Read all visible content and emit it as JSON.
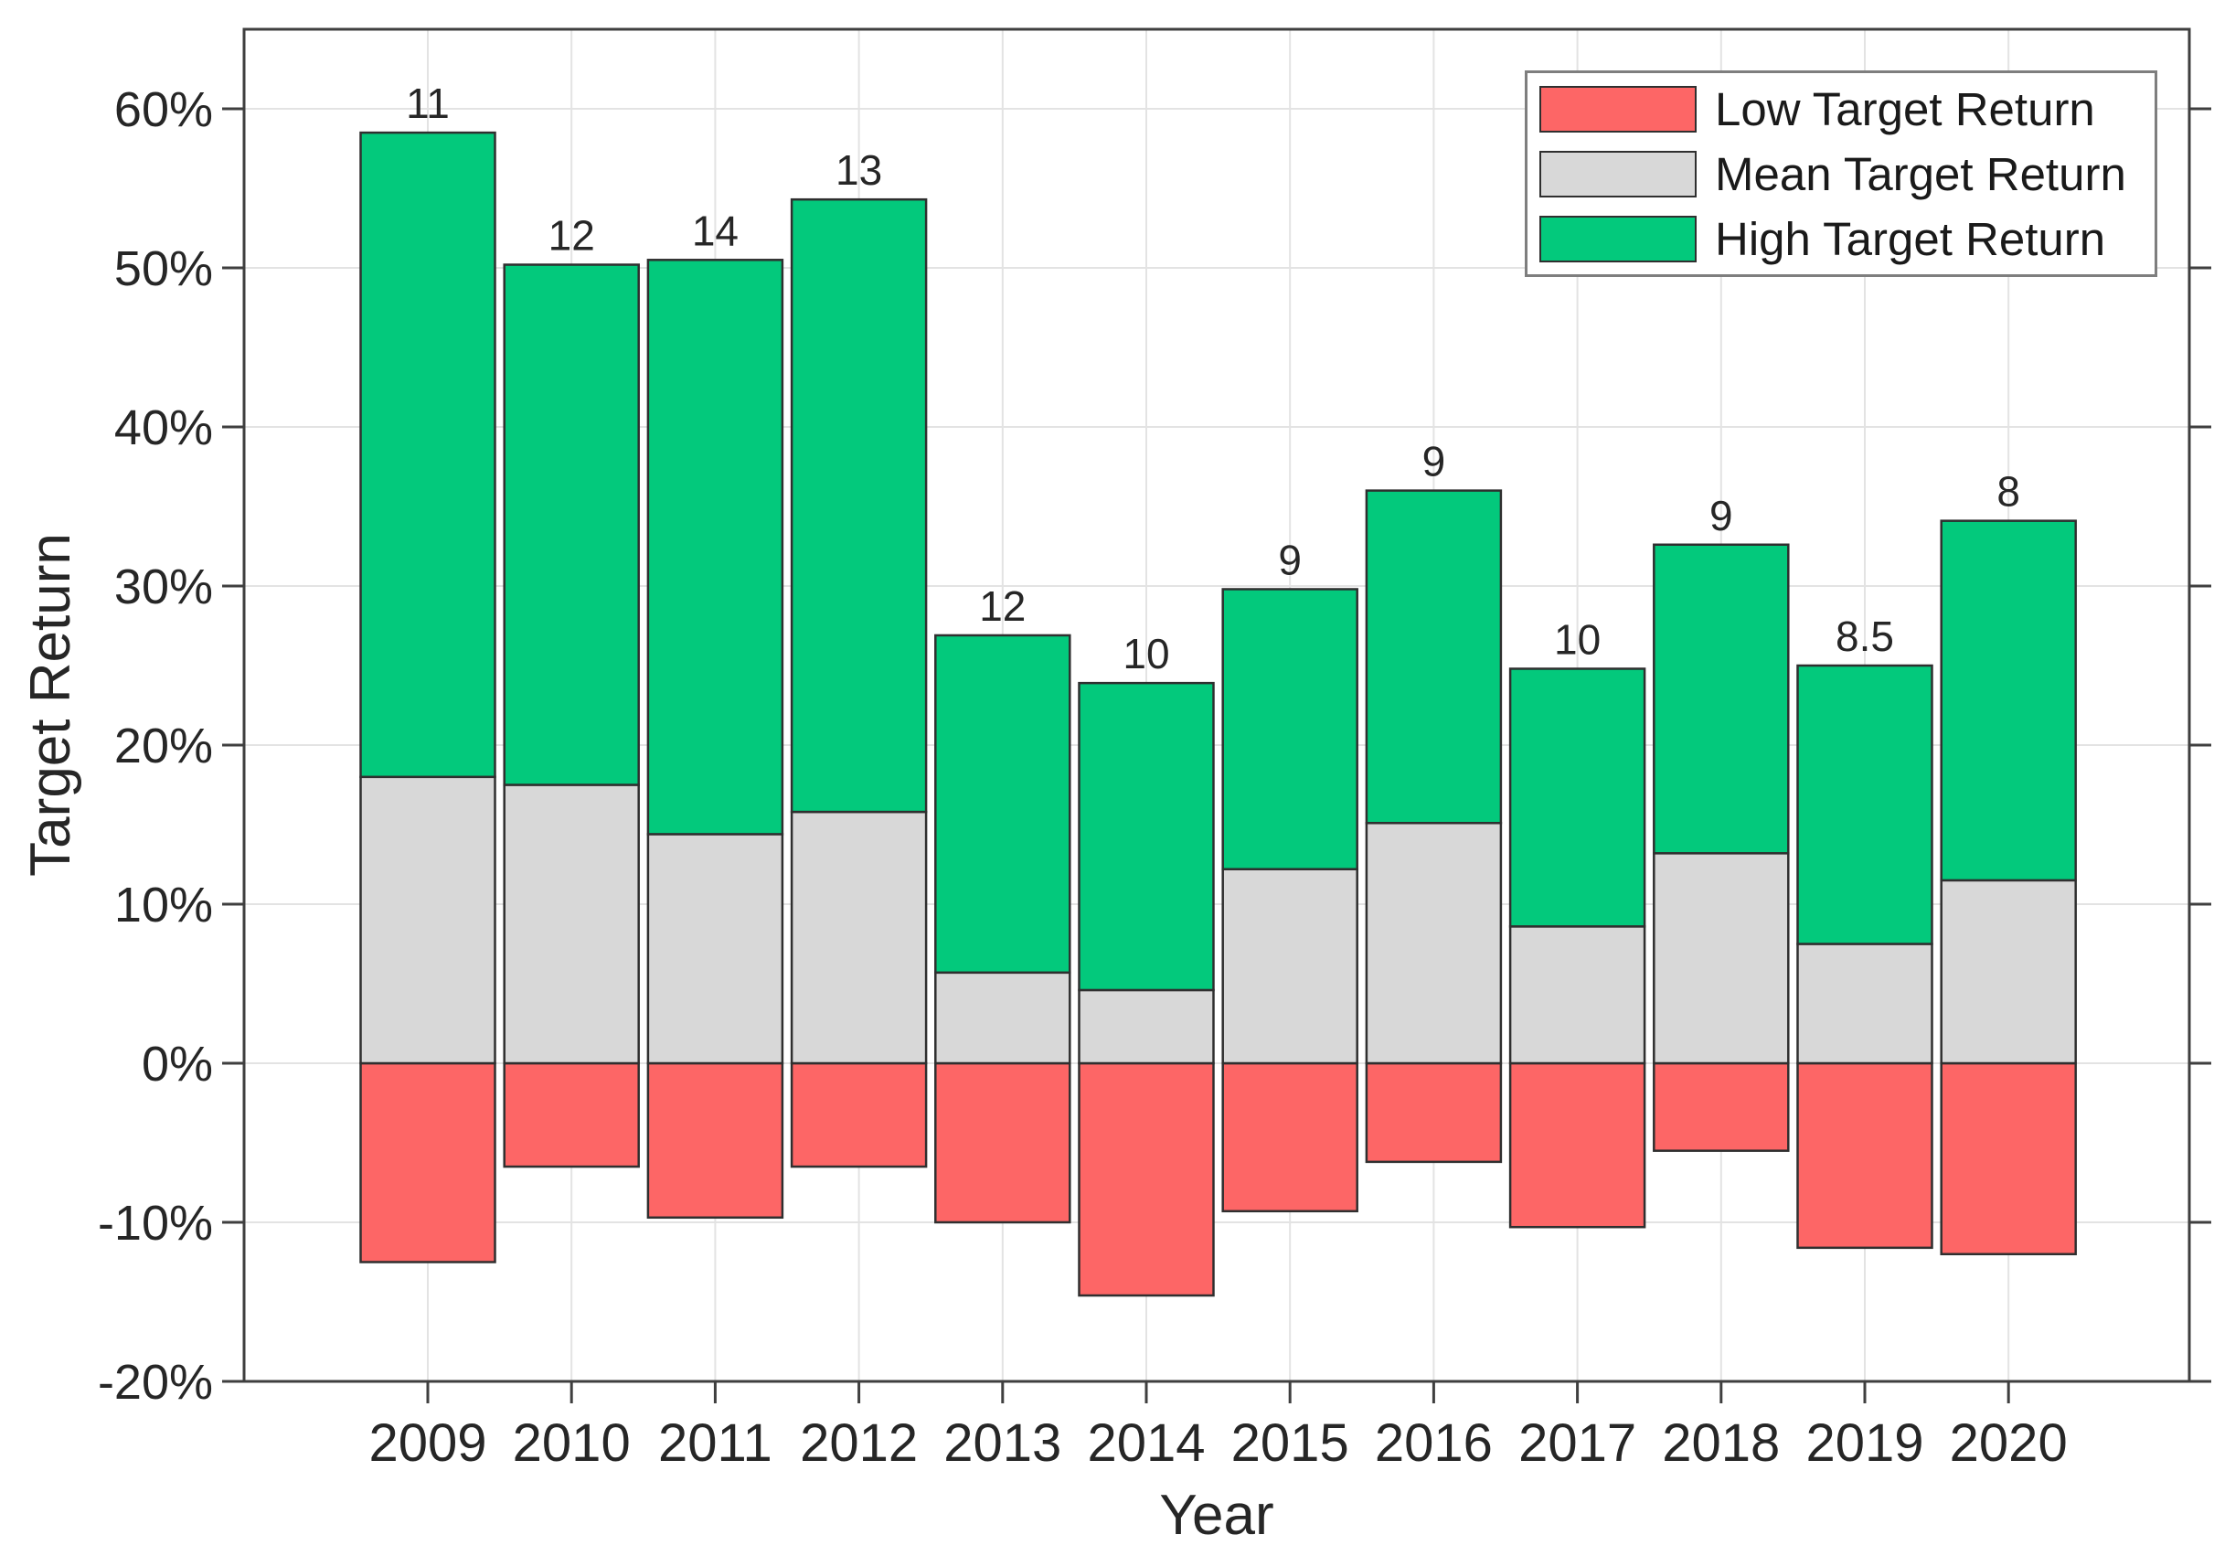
{
  "figure": {
    "title": "",
    "xlabel": "Year",
    "ylabel": "Target Return",
    "legend": [
      {
        "label": "Low Target Return",
        "color": "#FD6666"
      },
      {
        "label": "Mean Target Return",
        "color": "#D8D8D8"
      },
      {
        "label": "High Target Return",
        "color": "#03C97C"
      }
    ]
  },
  "chart_data": {
    "type": "bar",
    "stacked": true,
    "title": "",
    "xlabel": "Year",
    "ylabel": "Target Return",
    "categories": [
      "2009",
      "2010",
      "2011",
      "2012",
      "2013",
      "2014",
      "2015",
      "2016",
      "2017",
      "2018",
      "2019",
      "2020"
    ],
    "series": [
      {
        "name": "Low Target Return",
        "color": "#FD6666",
        "segment": "0 down to value",
        "values": [
          -12.5,
          -6.5,
          -9.7,
          -6.5,
          -10.0,
          -14.6,
          -9.3,
          -6.2,
          -10.3,
          -5.5,
          -11.6,
          -12.0
        ]
      },
      {
        "name": "Mean Target Return",
        "color": "#D8D8D8",
        "segment": "0 up to value",
        "values": [
          18.0,
          17.5,
          14.4,
          15.8,
          5.7,
          4.6,
          12.2,
          15.1,
          8.6,
          13.2,
          7.5,
          11.5
        ]
      },
      {
        "name": "High Target Return",
        "color": "#03C97C",
        "segment": "mean up to value",
        "values": [
          58.5,
          50.2,
          50.5,
          54.3,
          26.9,
          23.9,
          29.8,
          36.0,
          24.8,
          32.6,
          25.0,
          34.1
        ]
      }
    ],
    "bar_top_labels": [
      "11",
      "12",
      "14",
      "13",
      "12",
      "10",
      "9",
      "9",
      "10",
      "9",
      "8.5",
      "8"
    ],
    "ylim": [
      -20,
      65
    ],
    "ytick_values": [
      -20,
      -10,
      0,
      10,
      20,
      30,
      40,
      50,
      60
    ],
    "ytick_labels": [
      "-20%",
      "-10%",
      "0%",
      "10%",
      "20%",
      "30%",
      "40%",
      "50%",
      "60%"
    ],
    "grid": true,
    "legend_position": "top-right"
  },
  "style": {
    "bar_edge": "#2F2F2F",
    "grid_line": "#E3E3E3",
    "axis_line": "#3F3F3F",
    "text": "#262626",
    "background": "#FFFFFF"
  }
}
